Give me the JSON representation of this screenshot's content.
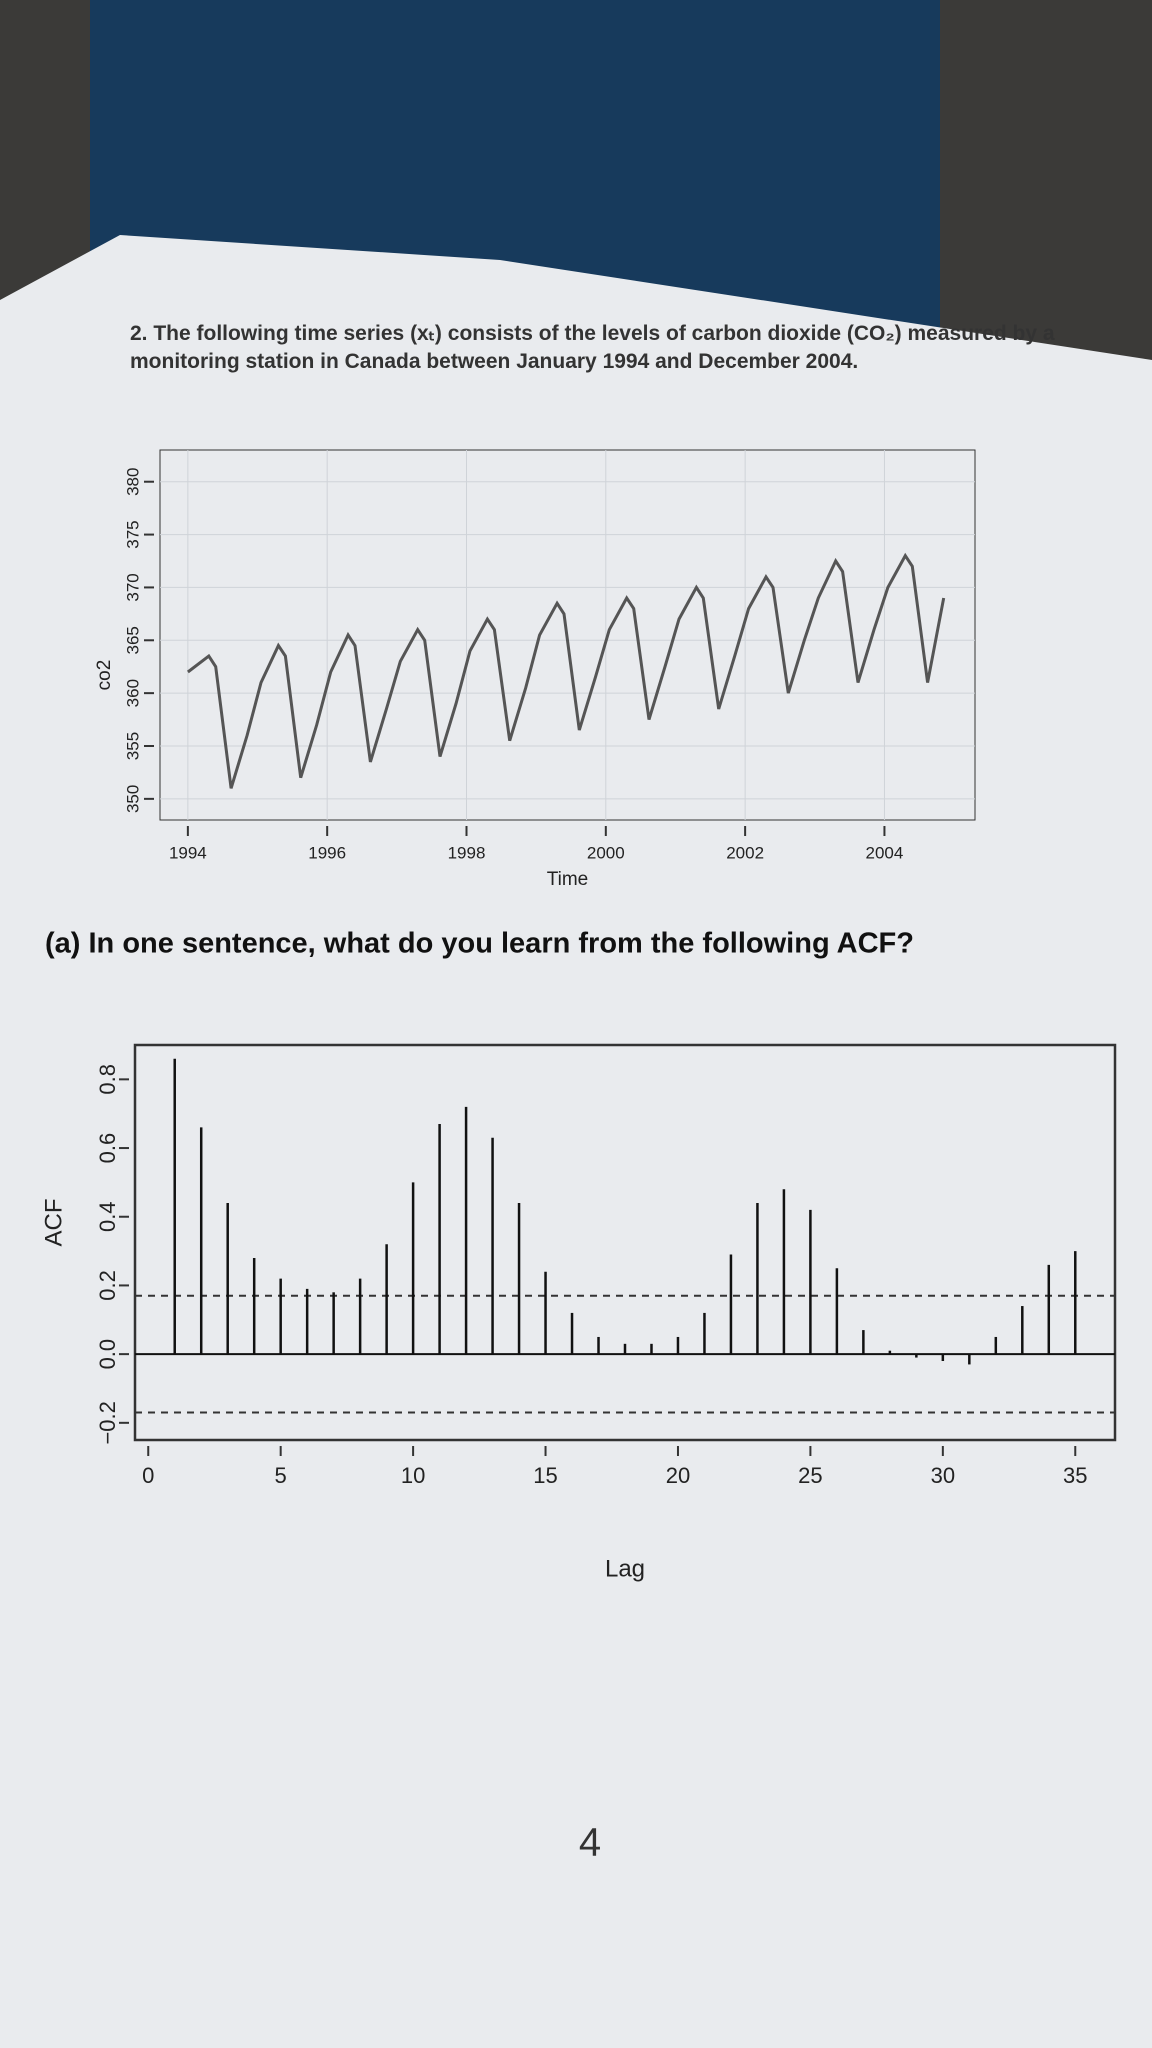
{
  "question": "2. The following time series (xₜ) consists of the levels of carbon dioxide (CO₂) measured by a monitoring station in Canada between January 1994 and December 2004.",
  "part_a": "(a) In one sentence, what do you learn from the following ACF?",
  "page_number": "4",
  "chart_data": [
    {
      "type": "line",
      "xlabel": "Time",
      "ylabel": "co2",
      "color": "#555555",
      "grid": true,
      "x": [
        1994.0,
        1994.3,
        1994.4,
        1994.62,
        1994.85,
        1995.05,
        1995.3,
        1995.4,
        1995.62,
        1995.85,
        1996.05,
        1996.3,
        1996.4,
        1996.62,
        1996.85,
        1997.05,
        1997.3,
        1997.4,
        1997.62,
        1997.85,
        1998.05,
        1998.3,
        1998.4,
        1998.62,
        1998.85,
        1999.05,
        1999.3,
        1999.4,
        1999.62,
        1999.85,
        2000.05,
        2000.3,
        2000.4,
        2000.62,
        2000.85,
        2001.05,
        2001.3,
        2001.4,
        2001.62,
        2001.85,
        2002.05,
        2002.3,
        2002.4,
        2002.62,
        2002.85,
        2003.05,
        2003.3,
        2003.4,
        2003.62,
        2003.85,
        2004.05,
        2004.3,
        2004.4,
        2004.62,
        2004.85
      ],
      "values": [
        362,
        363.5,
        362.5,
        351,
        356,
        361,
        364.5,
        363.5,
        352,
        357,
        362,
        365.5,
        364.5,
        353.5,
        358.5,
        363,
        366,
        365,
        354,
        359,
        364,
        367,
        366,
        355.5,
        360.5,
        365.5,
        368.5,
        367.5,
        356.5,
        361.5,
        366,
        369,
        368,
        357.5,
        362.5,
        367,
        370,
        369,
        358.5,
        363.5,
        368,
        371,
        370,
        360,
        365,
        369,
        372.5,
        371.5,
        361,
        366,
        370,
        373,
        372,
        361,
        369
      ],
      "xlim": [
        1993.6,
        2005.3
      ],
      "ylim": [
        348,
        383
      ],
      "xticks": [
        1994,
        1996,
        1998,
        2000,
        2002,
        2004
      ],
      "yticks": [
        350,
        355,
        360,
        365,
        370,
        375,
        380
      ]
    },
    {
      "type": "stem",
      "xlabel": "Lag",
      "ylabel": "ACF",
      "color": "#111111",
      "x": [
        1,
        2,
        3,
        4,
        5,
        6,
        7,
        8,
        9,
        10,
        11,
        12,
        13,
        14,
        15,
        16,
        17,
        18,
        19,
        20,
        21,
        22,
        23,
        24,
        25,
        26,
        27,
        28,
        29,
        30,
        31,
        32,
        33,
        34,
        35
      ],
      "values": [
        0.86,
        0.66,
        0.44,
        0.28,
        0.22,
        0.19,
        0.18,
        0.22,
        0.32,
        0.5,
        0.67,
        0.72,
        0.63,
        0.44,
        0.24,
        0.12,
        0.05,
        0.03,
        0.03,
        0.05,
        0.12,
        0.29,
        0.44,
        0.48,
        0.42,
        0.25,
        0.07,
        0.01,
        -0.01,
        -0.02,
        -0.03,
        0.05,
        0.14,
        0.26,
        0.3
      ],
      "ci": [
        -0.17,
        0.17
      ],
      "xlim": [
        -0.5,
        36.5
      ],
      "ylim": [
        -0.25,
        0.9
      ],
      "xticks": [
        0,
        5,
        10,
        15,
        20,
        25,
        30,
        35
      ],
      "yticks": [
        {
          "value": -0.2,
          "label": "−0.2"
        },
        {
          "value": 0,
          "label": "0.0"
        },
        0.2,
        0.4,
        0.6,
        0.8
      ]
    }
  ]
}
